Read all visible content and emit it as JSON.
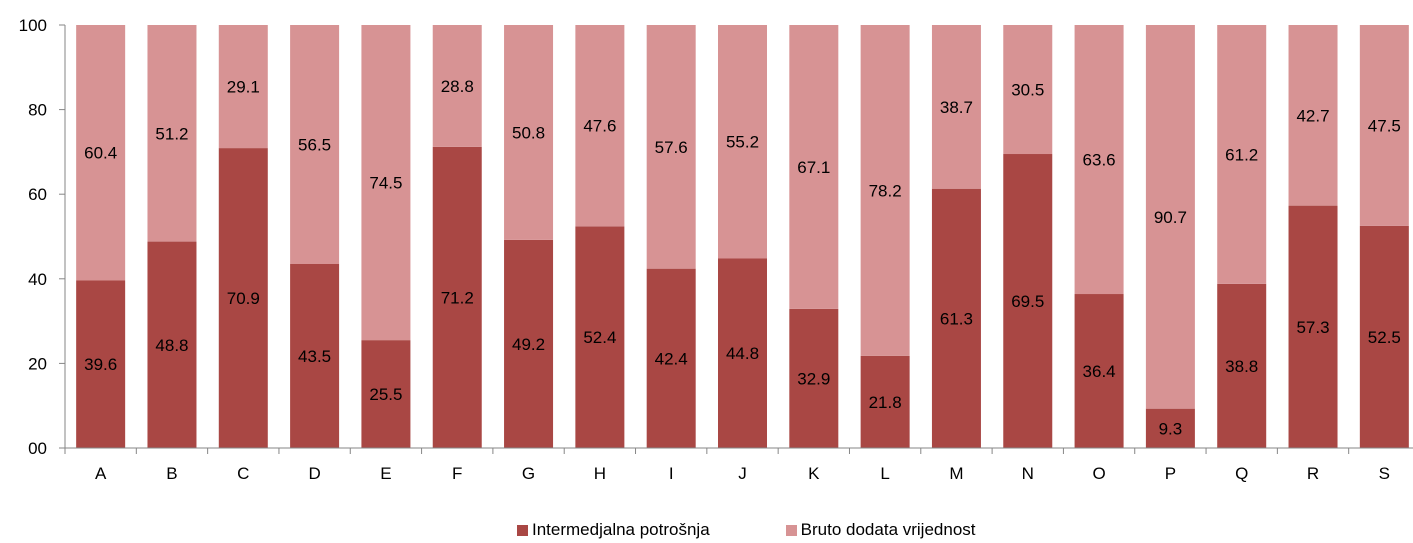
{
  "chart_data": {
    "type": "bar",
    "stacked": true,
    "categories": [
      "A",
      "B",
      "C",
      "D",
      "E",
      "F",
      "G",
      "H",
      "I",
      "J",
      "K",
      "L",
      "M",
      "N",
      "O",
      "P",
      "Q",
      "R",
      "S"
    ],
    "series": [
      {
        "name": "Intermedjalna potrošnja",
        "color": "#a94744",
        "values": [
          39.6,
          48.8,
          70.9,
          43.5,
          25.5,
          71.2,
          49.2,
          52.4,
          42.4,
          44.8,
          32.9,
          21.8,
          61.3,
          69.5,
          36.4,
          9.3,
          38.8,
          57.3,
          52.5
        ]
      },
      {
        "name": "Bruto dodata vrijednost",
        "color": "#d79394",
        "values": [
          60.4,
          51.2,
          29.1,
          56.5,
          74.5,
          28.8,
          50.8,
          47.6,
          57.6,
          55.2,
          67.1,
          78.2,
          38.7,
          30.5,
          63.6,
          90.7,
          61.2,
          42.7,
          47.5
        ]
      }
    ],
    "y_ticks": [
      "00",
      "20",
      "40",
      "60",
      "80",
      "100"
    ],
    "ylim": [
      0,
      100
    ],
    "legend_position": "bottom"
  }
}
